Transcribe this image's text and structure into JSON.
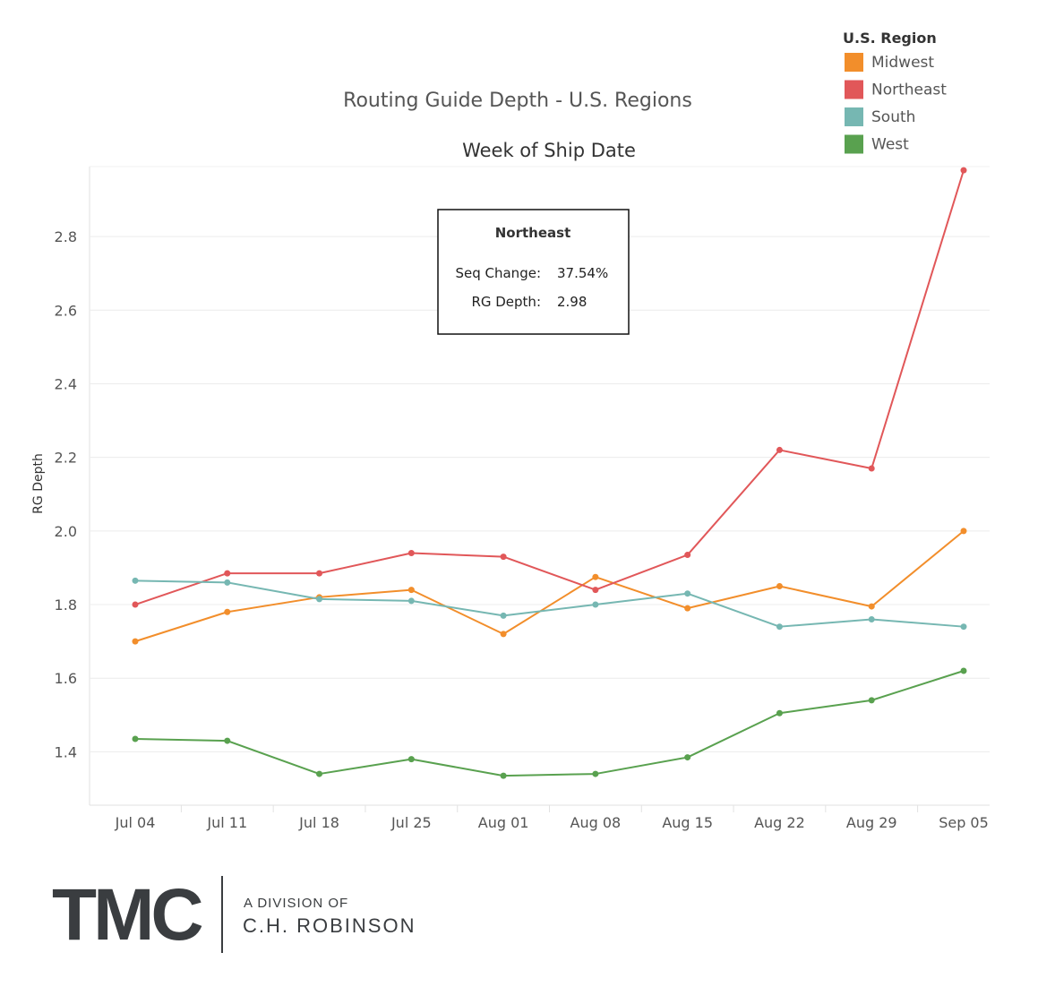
{
  "chart_data": {
    "type": "line",
    "title": "Routing Guide Depth - U.S. Regions",
    "subtitle": "Week of Ship Date",
    "xlabel": "",
    "ylabel": "RG Depth",
    "categories": [
      "Jul 04",
      "Jul 11",
      "Jul 18",
      "Jul 25",
      "Aug 01",
      "Aug 08",
      "Aug 15",
      "Aug 22",
      "Aug 29",
      "Sep 05"
    ],
    "ylim": [
      1.255,
      2.99
    ],
    "yticks": [
      "1.4",
      "1.6",
      "1.8",
      "2.0",
      "2.2",
      "2.4",
      "2.6",
      "2.8"
    ],
    "ytick_values": [
      1.4,
      1.6,
      1.8,
      2.0,
      2.2,
      2.4,
      2.6,
      2.8
    ],
    "grid": true,
    "legend": {
      "title": "U.S. Region",
      "position": "top-right"
    },
    "series": [
      {
        "name": "Midwest",
        "color": "#f28e2b",
        "values": [
          1.7,
          1.78,
          1.82,
          1.84,
          1.72,
          1.875,
          1.79,
          1.85,
          1.795,
          2.0
        ]
      },
      {
        "name": "Northeast",
        "color": "#e15759",
        "values": [
          1.8,
          1.885,
          1.885,
          1.94,
          1.93,
          1.84,
          1.935,
          2.22,
          2.17,
          2.98
        ]
      },
      {
        "name": "South",
        "color": "#76b7b2",
        "values": [
          1.865,
          1.86,
          1.815,
          1.81,
          1.77,
          1.8,
          1.83,
          1.74,
          1.76,
          1.74
        ]
      },
      {
        "name": "West",
        "color": "#59a14f",
        "values": [
          1.435,
          1.43,
          1.34,
          1.38,
          1.335,
          1.34,
          1.385,
          1.505,
          1.54,
          1.62
        ]
      }
    ],
    "tooltip": {
      "title": "Northeast",
      "rows": [
        {
          "label": "Seq Change:",
          "value": "37.54%"
        },
        {
          "label": "RG Depth:",
          "value": "2.98"
        }
      ]
    }
  },
  "logo": {
    "main": "TMC",
    "line1": "A DIVISION OF",
    "line2": "C.H. ROBINSON"
  }
}
